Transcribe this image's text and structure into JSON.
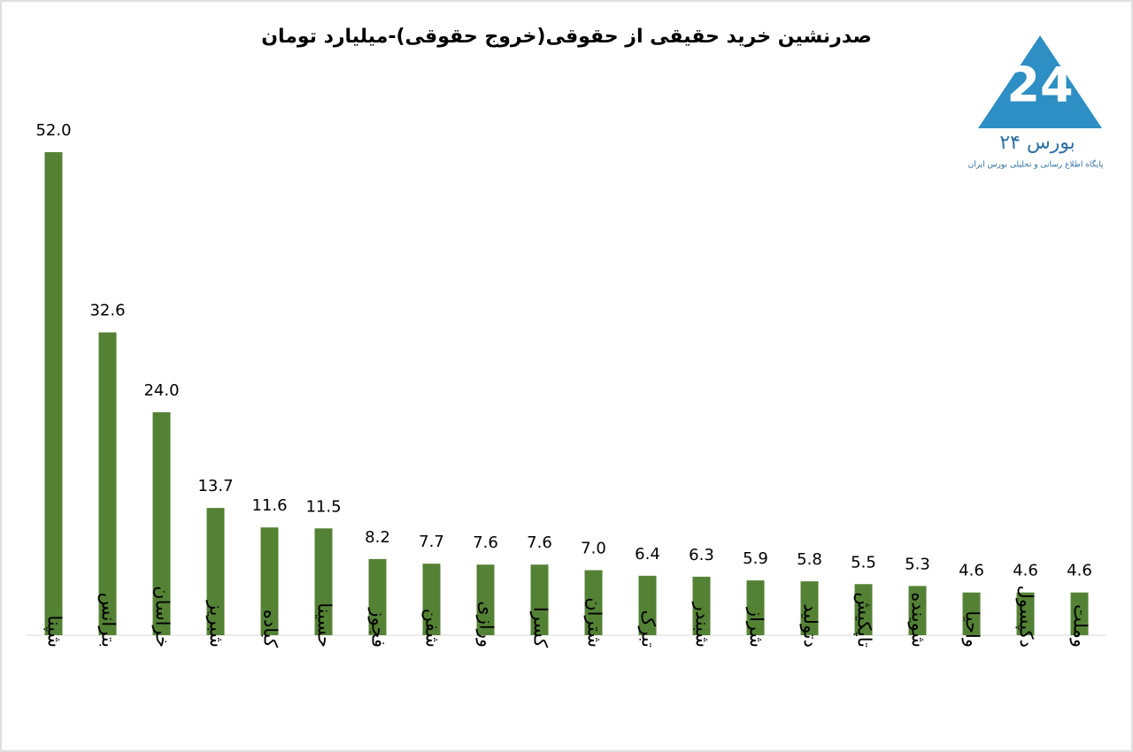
{
  "chart_data": {
    "type": "bar",
    "title": "صدرنشین خرید حقیقی از حقوقی(خروج حقوقی)-میلیارد تومان",
    "categories": [
      "شپنا",
      "بترانس",
      "خراسان",
      "شبریز",
      "کباده",
      "حسینا",
      "فجوز",
      "شفن",
      "ورازی",
      "کسرا",
      "شتران",
      "تبرک",
      "شبندر",
      "شراز",
      "دتولید",
      "تاپکیش",
      "شوینده",
      "واحیا",
      "دکپسول",
      "وملت"
    ],
    "values": [
      52.0,
      32.6,
      24.0,
      13.7,
      11.6,
      11.5,
      8.2,
      7.7,
      7.6,
      7.6,
      7.0,
      6.4,
      6.3,
      5.9,
      5.8,
      5.5,
      5.3,
      4.6,
      4.6,
      4.6
    ],
    "value_labels": [
      "52.0",
      "32.6",
      "24.0",
      "13.7",
      "11.6",
      "11.5",
      "8.2",
      "7.7",
      "7.6",
      "7.6",
      "7.0",
      "6.4",
      "6.3",
      "5.9",
      "5.8",
      "5.5",
      "5.3",
      "4.6",
      "4.6",
      "4.6"
    ],
    "color": "#548235",
    "ylim": [
      0,
      60
    ]
  },
  "logo": {
    "name": "بورس ۲۴",
    "tagline": "پایگاه اطلاع رسانی و تحلیلی بورس ایران"
  }
}
